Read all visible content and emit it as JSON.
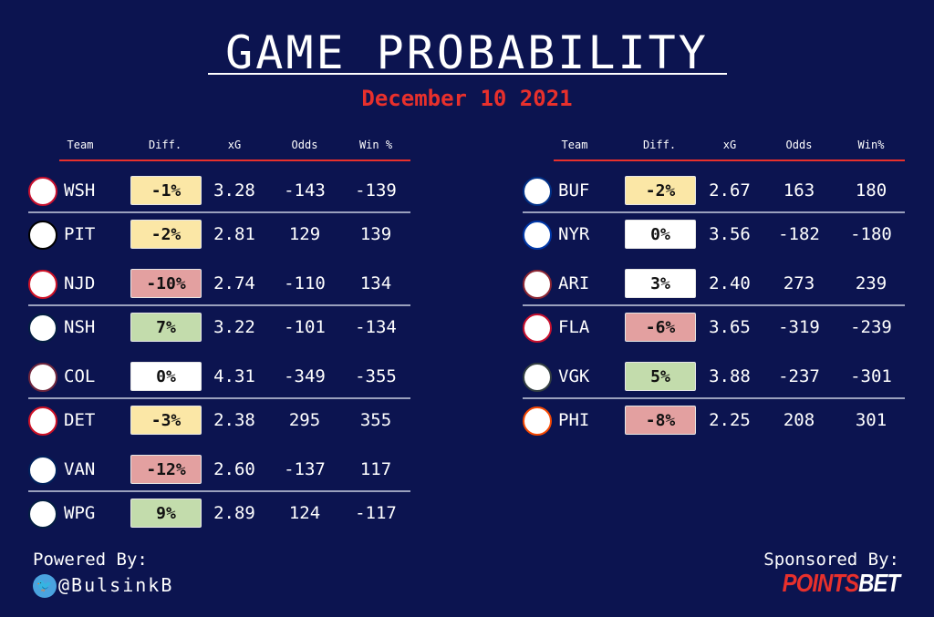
{
  "title": "GAME PROBABILITY",
  "date": "December 10 2021",
  "colors": {
    "background": "#0c1450",
    "accent": "#e8302c",
    "diff_yellow": "#fbe7a6",
    "diff_red": "#e3a0a0",
    "diff_green": "#c3dcac",
    "diff_white": "#ffffff"
  },
  "left_table": {
    "headers": [
      "Team",
      "Diff.",
      "xG",
      "Odds",
      "Win %"
    ],
    "rows": [
      {
        "team": "WSH",
        "diff": "-1%",
        "color": "yellow",
        "xg": "3.28",
        "odds": "-143",
        "win": "-139",
        "logo_color": "#c8102e"
      },
      {
        "team": "PIT",
        "diff": "-2%",
        "color": "yellow",
        "xg": "2.81",
        "odds": "129",
        "win": "139",
        "logo_color": "#000000"
      },
      {
        "team": "NJD",
        "diff": "-10%",
        "color": "red",
        "xg": "2.74",
        "odds": "-110",
        "win": "134",
        "logo_color": "#ce1126"
      },
      {
        "team": "NSH",
        "diff": "7%",
        "color": "green",
        "xg": "3.22",
        "odds": "-101",
        "win": "-134",
        "logo_color": "#041e42"
      },
      {
        "team": "COL",
        "diff": "0%",
        "color": "white",
        "xg": "4.31",
        "odds": "-349",
        "win": "-355",
        "logo_color": "#6f263d"
      },
      {
        "team": "DET",
        "diff": "-3%",
        "color": "yellow",
        "xg": "2.38",
        "odds": "295",
        "win": "355",
        "logo_color": "#ce1126"
      },
      {
        "team": "VAN",
        "diff": "-12%",
        "color": "red",
        "xg": "2.60",
        "odds": "-137",
        "win": "117",
        "logo_color": "#00205b"
      },
      {
        "team": "WPG",
        "diff": "9%",
        "color": "green",
        "xg": "2.89",
        "odds": "124",
        "win": "-117",
        "logo_color": "#041e42"
      }
    ]
  },
  "right_table": {
    "headers": [
      "Team",
      "Diff.",
      "xG",
      "Odds",
      "Win%"
    ],
    "rows": [
      {
        "team": "BUF",
        "diff": "-2%",
        "color": "yellow",
        "xg": "2.67",
        "odds": "163",
        "win": "180",
        "logo_color": "#003087"
      },
      {
        "team": "NYR",
        "diff": "0%",
        "color": "white",
        "xg": "3.56",
        "odds": "-182",
        "win": "-180",
        "logo_color": "#0038a8"
      },
      {
        "team": "ARI",
        "diff": "3%",
        "color": "white",
        "xg": "2.40",
        "odds": "273",
        "win": "239",
        "logo_color": "#8c2633"
      },
      {
        "team": "FLA",
        "diff": "-6%",
        "color": "red",
        "xg": "3.65",
        "odds": "-319",
        "win": "-239",
        "logo_color": "#c8102e"
      },
      {
        "team": "VGK",
        "diff": "5%",
        "color": "green",
        "xg": "3.88",
        "odds": "-237",
        "win": "-301",
        "logo_color": "#333f42"
      },
      {
        "team": "PHI",
        "diff": "-8%",
        "color": "red",
        "xg": "2.25",
        "odds": "208",
        "win": "301",
        "logo_color": "#f74902"
      }
    ]
  },
  "footer": {
    "powered_label": "Powered By:",
    "twitter_handle": "@BulsinkB",
    "sponsored_label": "Sponsored By:",
    "sponsor_logo": {
      "part1": "POINTS",
      "part2": "BET"
    }
  }
}
